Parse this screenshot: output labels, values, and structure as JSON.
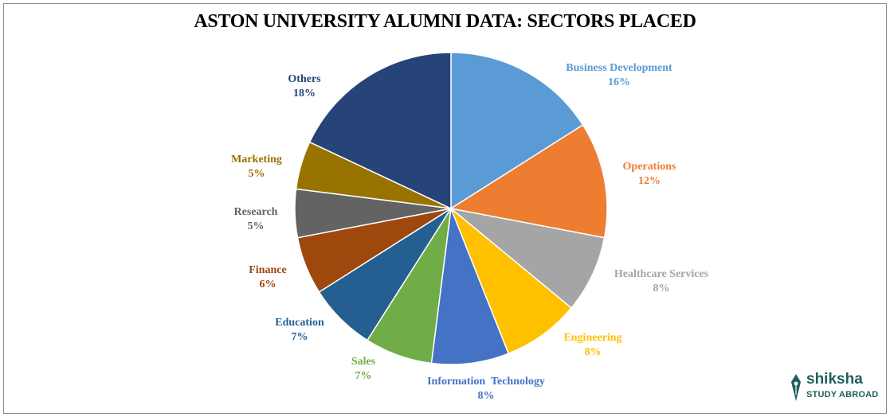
{
  "chart_data": {
    "type": "pie",
    "title": "ASTON UNIVERSITY ALUMNI DATA: SECTORS PLACED",
    "unit": "%",
    "slices": [
      {
        "name": "Business Development",
        "value": 16,
        "label": "16%",
        "color": "#5b9bd5"
      },
      {
        "name": "Operations",
        "value": 12,
        "label": "12%",
        "color": "#ed7d31"
      },
      {
        "name": "Healthcare Services",
        "value": 8,
        "label": "8%",
        "color": "#a5a5a5"
      },
      {
        "name": "Engineering",
        "value": 8,
        "label": "8%",
        "color": "#ffc000"
      },
      {
        "name": "Information  Technology",
        "value": 8,
        "label": "8%",
        "color": "#4472c4"
      },
      {
        "name": "Sales",
        "value": 7,
        "label": "7%",
        "color": "#70ad47"
      },
      {
        "name": "Education",
        "value": 7,
        "label": "7%",
        "color": "#255e91"
      },
      {
        "name": "Finance",
        "value": 6,
        "label": "6%",
        "color": "#9e480e"
      },
      {
        "name": "Research",
        "value": 5,
        "label": "5%",
        "color": "#636363"
      },
      {
        "name": "Marketing",
        "value": 5,
        "label": "5%",
        "color": "#997300"
      },
      {
        "name": "Others",
        "value": 18,
        "label": "18%",
        "color": "#264478"
      }
    ],
    "label_colors": {
      "Business Development": "#5b9bd5",
      "Operations": "#ed7d31",
      "Healthcare Services": "#a5a5a5",
      "Engineering": "#ffc000",
      "Information  Technology": "#4472c4",
      "Sales": "#70ad47",
      "Education": "#255e91",
      "Finance": "#9e480e",
      "Research": "#636363",
      "Marketing": "#997300",
      "Others": "#264478"
    }
  },
  "logo": {
    "brand": "shiksha",
    "tagline": "STUDY ABROAD",
    "color": "#1f5f5a"
  }
}
